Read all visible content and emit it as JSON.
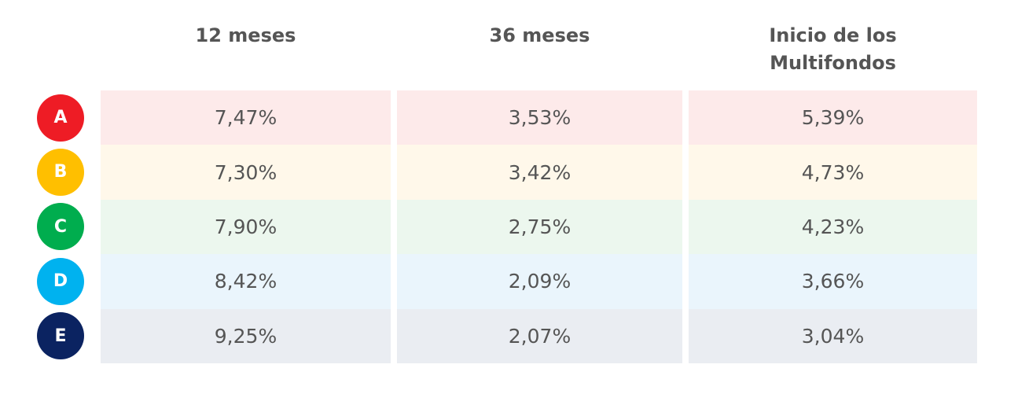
{
  "table": {
    "headers": [
      "12 meses",
      "36 meses",
      "Inicio de los Multifondos"
    ],
    "rows": [
      {
        "fund": "A",
        "values": [
          "7,47%",
          "3,53%",
          "5,39%"
        ]
      },
      {
        "fund": "B",
        "values": [
          "7,30%",
          "3,42%",
          "4,73%"
        ]
      },
      {
        "fund": "C",
        "values": [
          "7,90%",
          "2,75%",
          "4,23%"
        ]
      },
      {
        "fund": "D",
        "values": [
          "8,42%",
          "2,09%",
          "3,66%"
        ]
      },
      {
        "fund": "E",
        "values": [
          "9,25%",
          "2,07%",
          "3,04%"
        ]
      }
    ]
  }
}
